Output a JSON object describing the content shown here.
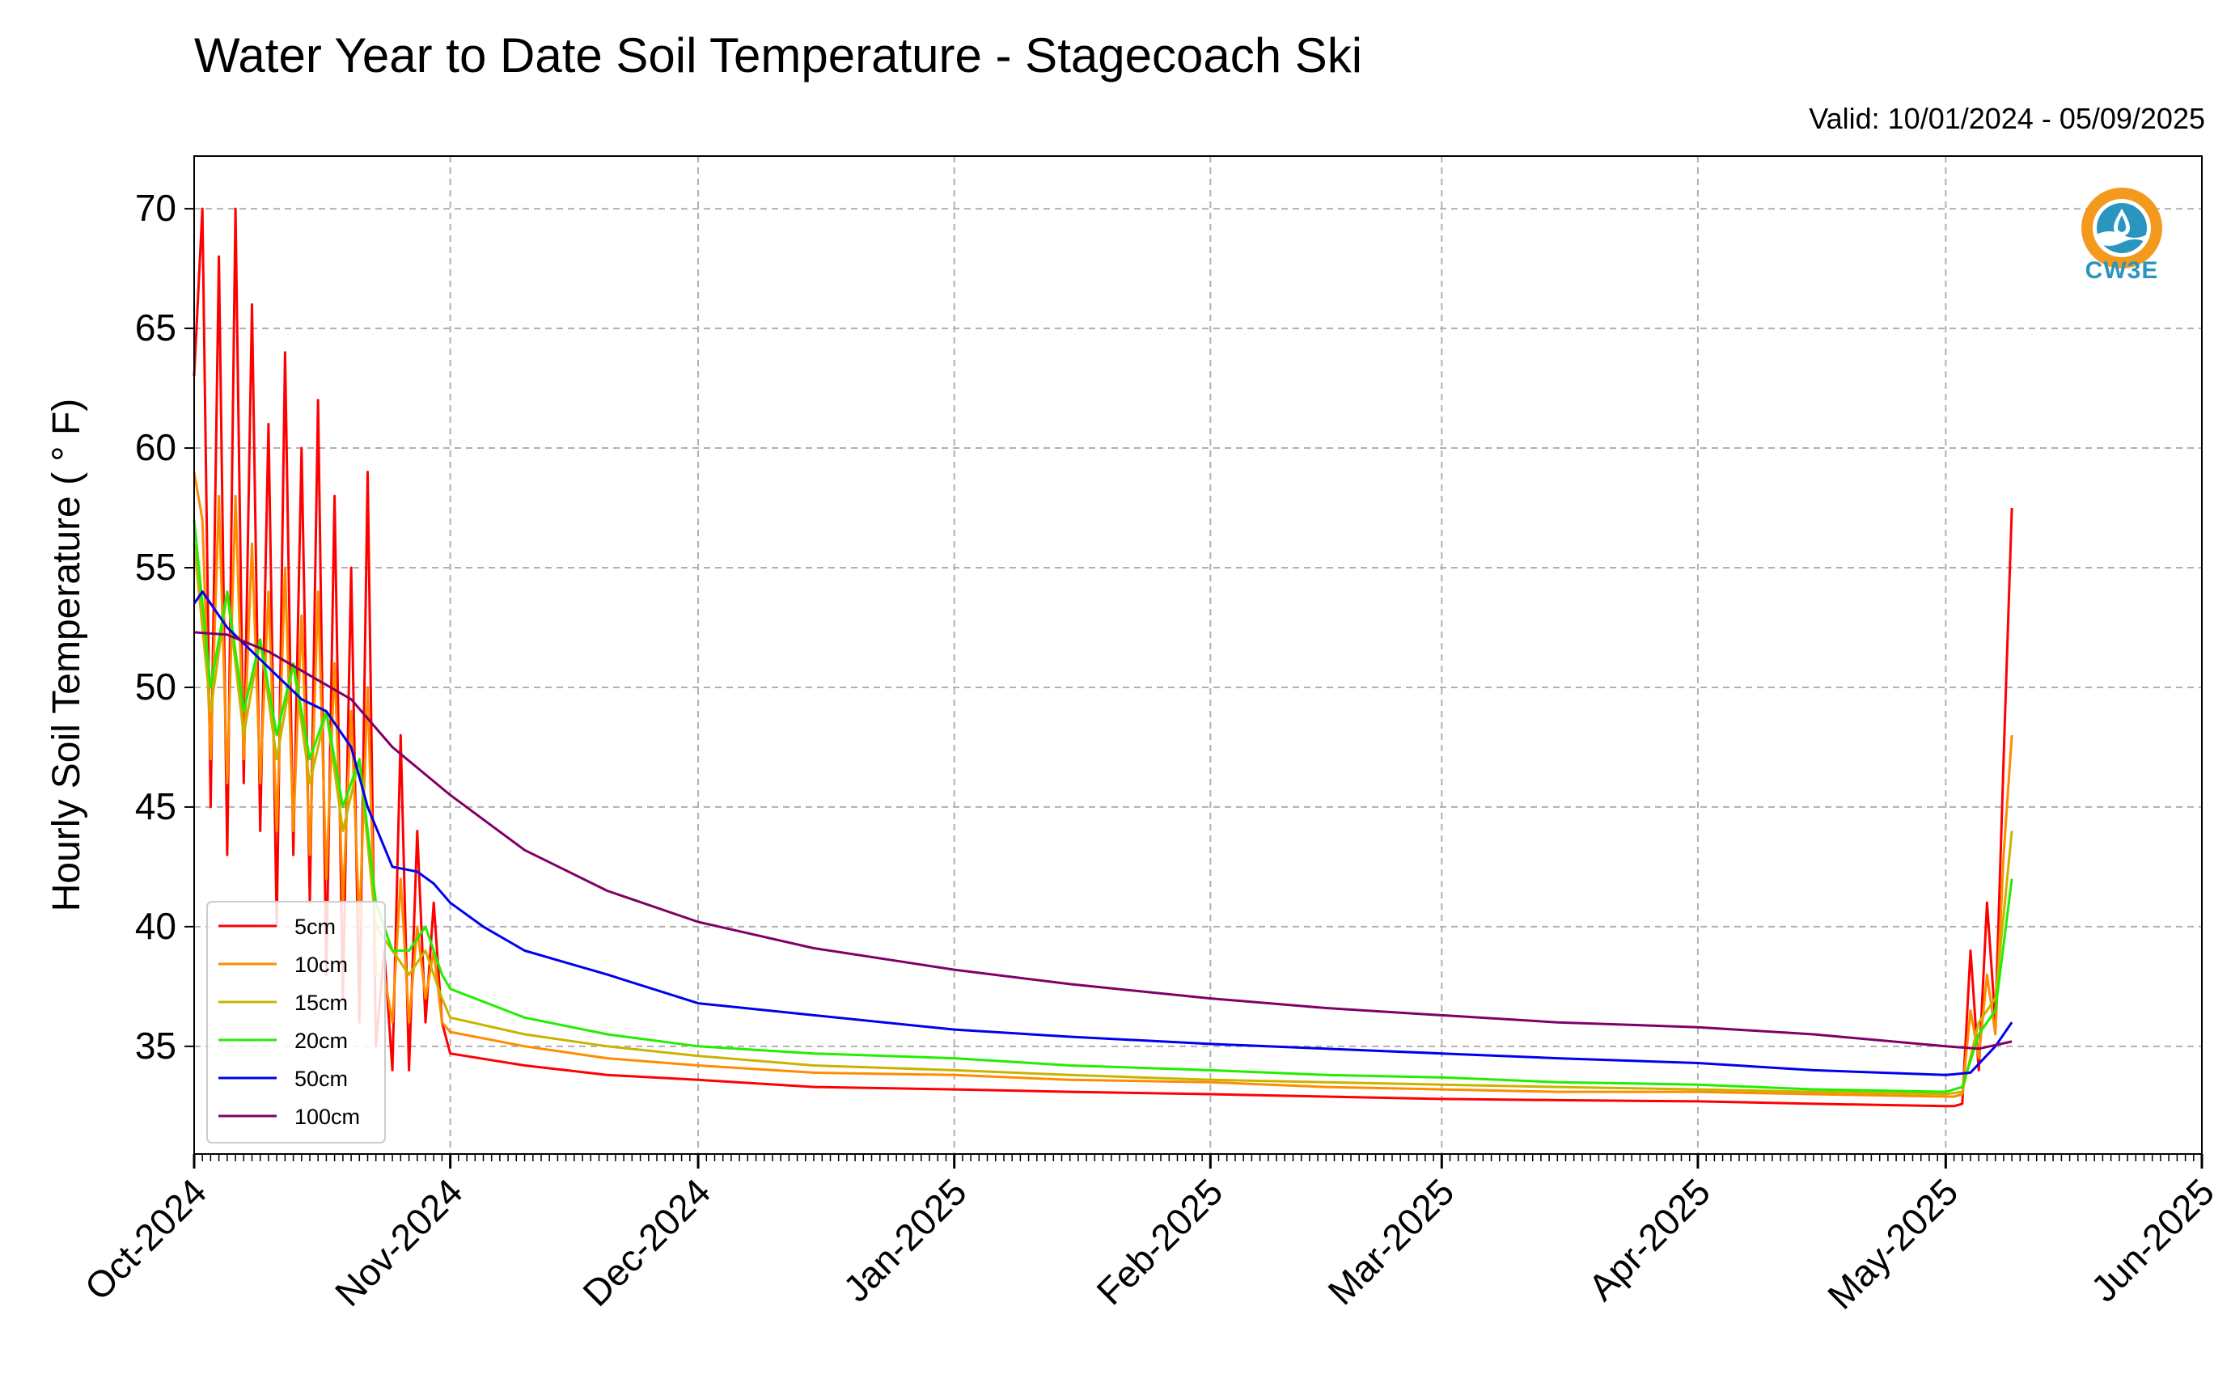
{
  "title": "Water Year to Date Soil Temperature - Stagecoach Ski",
  "subtitle": "Valid: 10/01/2024 - 05/09/2025",
  "logo_text": "CW3E",
  "chart_data": {
    "type": "line",
    "title": "Water Year to Date Soil Temperature - Stagecoach Ski",
    "subtitle": "Valid: 10/01/2024 - 05/09/2025",
    "ylabel": "Hourly Soil Temperature ( ° F)",
    "xlabel": "",
    "xlim": [
      "2024-10-01",
      "2025-06-01"
    ],
    "ylim": [
      30.5,
      72.2
    ],
    "yticks": [
      35,
      40,
      45,
      50,
      55,
      60,
      65,
      70
    ],
    "xticks": [
      "2024-10-01",
      "2024-11-01",
      "2024-12-01",
      "2025-01-01",
      "2025-02-01",
      "2025-03-01",
      "2025-04-01",
      "2025-05-01",
      "2025-06-01"
    ],
    "xtick_labels": [
      "Oct-2024",
      "Nov-2024",
      "Dec-2024",
      "Jan-2025",
      "Feb-2025",
      "Mar-2025",
      "Apr-2025",
      "May-2025",
      "Jun-2025"
    ],
    "grid": true,
    "legend_position": "lower-left",
    "series": [
      {
        "name": "5cm",
        "color": "#ff0000",
        "x": [
          "2024-10-01",
          "2024-10-02",
          "2024-10-03",
          "2024-10-04",
          "2024-10-05",
          "2024-10-06",
          "2024-10-07",
          "2024-10-08",
          "2024-10-09",
          "2024-10-10",
          "2024-10-11",
          "2024-10-12",
          "2024-10-13",
          "2024-10-14",
          "2024-10-15",
          "2024-10-16",
          "2024-10-17",
          "2024-10-18",
          "2024-10-19",
          "2024-10-20",
          "2024-10-21",
          "2024-10-22",
          "2024-10-23",
          "2024-10-24",
          "2024-10-25",
          "2024-10-26",
          "2024-10-27",
          "2024-10-28",
          "2024-10-29",
          "2024-10-30",
          "2024-10-31",
          "2024-11-01",
          "2024-11-10",
          "2024-11-20",
          "2024-12-01",
          "2024-12-15",
          "2025-01-01",
          "2025-01-15",
          "2025-02-01",
          "2025-02-15",
          "2025-03-01",
          "2025-03-15",
          "2025-04-01",
          "2025-04-15",
          "2025-05-01",
          "2025-05-02",
          "2025-05-03",
          "2025-05-04",
          "2025-05-05",
          "2025-05-06",
          "2025-05-07",
          "2025-05-08",
          "2025-05-09"
        ],
        "y": [
          63,
          70,
          45,
          68,
          43,
          70,
          46,
          66,
          44,
          61,
          40,
          64,
          43,
          60,
          41,
          62,
          38,
          58,
          37,
          55,
          36,
          59,
          35,
          39,
          34,
          48,
          34,
          44,
          36,
          41,
          36,
          34.7,
          34.2,
          33.8,
          33.6,
          33.3,
          33.2,
          33.1,
          33.0,
          32.9,
          32.8,
          32.75,
          32.7,
          32.6,
          32.5,
          32.5,
          32.6,
          39,
          34,
          41,
          36,
          47,
          57.5
        ]
      },
      {
        "name": "10cm",
        "color": "#ff8c00",
        "x": [
          "2024-10-01",
          "2024-10-02",
          "2024-10-03",
          "2024-10-04",
          "2024-10-05",
          "2024-10-06",
          "2024-10-07",
          "2024-10-08",
          "2024-10-09",
          "2024-10-10",
          "2024-10-11",
          "2024-10-12",
          "2024-10-13",
          "2024-10-14",
          "2024-10-15",
          "2024-10-16",
          "2024-10-17",
          "2024-10-18",
          "2024-10-19",
          "2024-10-20",
          "2024-10-21",
          "2024-10-22",
          "2024-10-23",
          "2024-10-24",
          "2024-10-25",
          "2024-10-26",
          "2024-10-27",
          "2024-10-28",
          "2024-10-29",
          "2024-10-30",
          "2024-10-31",
          "2024-11-01",
          "2024-11-10",
          "2024-11-20",
          "2024-12-01",
          "2024-12-15",
          "2025-01-01",
          "2025-01-15",
          "2025-02-01",
          "2025-02-15",
          "2025-03-01",
          "2025-03-15",
          "2025-04-01",
          "2025-04-15",
          "2025-05-01",
          "2025-05-02",
          "2025-05-03",
          "2025-05-04",
          "2025-05-05",
          "2025-05-06",
          "2025-05-07",
          "2025-05-08",
          "2025-05-09"
        ],
        "y": [
          59,
          57,
          47,
          58,
          46,
          58,
          47,
          56,
          46,
          54,
          44,
          55,
          44,
          53,
          43,
          54,
          42,
          51,
          41,
          49,
          40,
          50,
          38,
          38,
          36,
          42,
          36,
          40,
          37,
          39,
          36,
          35.6,
          35.0,
          34.5,
          34.2,
          33.9,
          33.8,
          33.6,
          33.5,
          33.3,
          33.2,
          33.1,
          33.1,
          33.0,
          32.9,
          32.9,
          33.0,
          36.5,
          34.5,
          38,
          35.5,
          43,
          48
        ]
      },
      {
        "name": "15cm",
        "color": "#c8b400",
        "x": [
          "2024-10-01",
          "2024-10-03",
          "2024-10-05",
          "2024-10-07",
          "2024-10-09",
          "2024-10-11",
          "2024-10-13",
          "2024-10-15",
          "2024-10-17",
          "2024-10-19",
          "2024-10-21",
          "2024-10-23",
          "2024-10-25",
          "2024-10-27",
          "2024-10-29",
          "2024-10-31",
          "2024-11-01",
          "2024-11-10",
          "2024-11-20",
          "2024-12-01",
          "2024-12-15",
          "2025-01-01",
          "2025-01-15",
          "2025-02-01",
          "2025-02-15",
          "2025-03-01",
          "2025-03-15",
          "2025-04-01",
          "2025-04-15",
          "2025-05-01",
          "2025-05-03",
          "2025-05-05",
          "2025-05-07",
          "2025-05-09"
        ],
        "y": [
          56,
          49,
          54,
          48,
          52,
          47,
          51,
          46,
          49,
          44,
          47,
          40,
          39,
          38,
          39,
          37,
          36.2,
          35.5,
          35.0,
          34.6,
          34.2,
          34.0,
          33.8,
          33.6,
          33.5,
          33.4,
          33.3,
          33.2,
          33.1,
          33.0,
          33.1,
          36,
          37,
          44
        ]
      },
      {
        "name": "20cm",
        "color": "#22ee00",
        "x": [
          "2024-10-01",
          "2024-10-03",
          "2024-10-05",
          "2024-10-07",
          "2024-10-09",
          "2024-10-11",
          "2024-10-13",
          "2024-10-15",
          "2024-10-17",
          "2024-10-19",
          "2024-10-21",
          "2024-10-23",
          "2024-10-25",
          "2024-10-27",
          "2024-10-29",
          "2024-10-31",
          "2024-11-01",
          "2024-11-10",
          "2024-11-20",
          "2024-12-01",
          "2024-12-15",
          "2025-01-01",
          "2025-01-15",
          "2025-02-01",
          "2025-02-15",
          "2025-03-01",
          "2025-03-15",
          "2025-04-01",
          "2025-04-15",
          "2025-05-01",
          "2025-05-03",
          "2025-05-05",
          "2025-05-07",
          "2025-05-09"
        ],
        "y": [
          57,
          50,
          54,
          49,
          52,
          48,
          51,
          47,
          49,
          45,
          47,
          41,
          39,
          39,
          40,
          38,
          37.4,
          36.2,
          35.5,
          35.0,
          34.7,
          34.5,
          34.2,
          34.0,
          33.8,
          33.7,
          33.5,
          33.4,
          33.2,
          33.1,
          33.3,
          35.5,
          36.5,
          42
        ]
      },
      {
        "name": "50cm",
        "color": "#0000ee",
        "x": [
          "2024-10-01",
          "2024-10-02",
          "2024-10-05",
          "2024-10-08",
          "2024-10-11",
          "2024-10-14",
          "2024-10-17",
          "2024-10-20",
          "2024-10-22",
          "2024-10-25",
          "2024-10-28",
          "2024-10-30",
          "2024-11-01",
          "2024-11-05",
          "2024-11-10",
          "2024-11-15",
          "2024-11-20",
          "2024-12-01",
          "2024-12-15",
          "2025-01-01",
          "2025-01-15",
          "2025-02-01",
          "2025-02-15",
          "2025-03-01",
          "2025-03-15",
          "2025-04-01",
          "2025-04-15",
          "2025-05-01",
          "2025-05-04",
          "2025-05-07",
          "2025-05-09"
        ],
        "y": [
          53.5,
          54,
          52.5,
          51.5,
          50.5,
          49.5,
          49,
          47.5,
          45,
          42.5,
          42.3,
          41.8,
          41,
          40,
          39,
          38.5,
          38,
          36.8,
          36.3,
          35.7,
          35.4,
          35.1,
          34.9,
          34.7,
          34.5,
          34.3,
          34.0,
          33.8,
          33.9,
          35,
          36
        ]
      },
      {
        "name": "100cm",
        "color": "#800066",
        "x": [
          "2024-10-01",
          "2024-10-05",
          "2024-10-10",
          "2024-10-15",
          "2024-10-20",
          "2024-10-25",
          "2024-11-01",
          "2024-11-10",
          "2024-11-20",
          "2024-12-01",
          "2024-12-15",
          "2025-01-01",
          "2025-01-15",
          "2025-02-01",
          "2025-02-15",
          "2025-03-01",
          "2025-03-15",
          "2025-04-01",
          "2025-04-15",
          "2025-05-01",
          "2025-05-05",
          "2025-05-09"
        ],
        "y": [
          52.3,
          52.2,
          51.5,
          50.5,
          49.5,
          47.5,
          45.5,
          43.2,
          41.5,
          40.2,
          39.1,
          38.2,
          37.6,
          37.0,
          36.6,
          36.3,
          36.0,
          35.8,
          35.5,
          35.0,
          34.9,
          35.2
        ]
      }
    ]
  }
}
